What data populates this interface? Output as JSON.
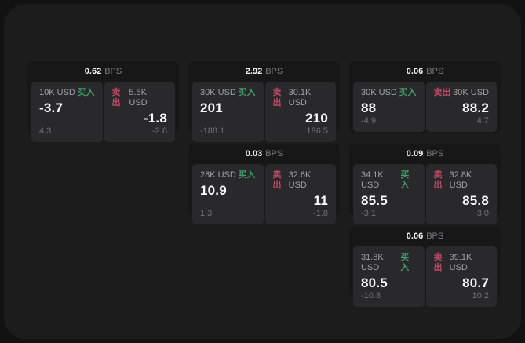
{
  "labels": {
    "bps": "BPS",
    "buy": "买入",
    "sell": "卖出"
  },
  "colors": {
    "page_background": "#1c1c1d",
    "outer_background": "#121213",
    "card_background": "#171718",
    "panel_background": "#29292b",
    "buy_green": "#3c9e6a",
    "sell_red": "#c44866"
  },
  "cards": [
    {
      "bps": "0.62",
      "buy": {
        "amount": "10K USD",
        "value": "-3.7",
        "sub": "4.3"
      },
      "sell": {
        "amount": "5.5K USD",
        "value": "-1.8",
        "sub": "-2.6"
      }
    },
    {
      "bps": "2.92",
      "buy": {
        "amount": "30K USD",
        "value": "201",
        "sub": "-188.1"
      },
      "sell": {
        "amount": "30.1K USD",
        "value": "210",
        "sub": "196.5"
      }
    },
    {
      "bps": "0.06",
      "buy": {
        "amount": "30K USD",
        "value": "88",
        "sub": "-4.9"
      },
      "sell": {
        "amount": "30K USD",
        "value": "88.2",
        "sub": "4.7"
      }
    },
    {
      "bps": "0.03",
      "buy": {
        "amount": "28K USD",
        "value": "10.9",
        "sub": "1.3"
      },
      "sell": {
        "amount": "32.6K USD",
        "value": "11",
        "sub": "-1.8"
      }
    },
    {
      "bps": "0.09",
      "buy": {
        "amount": "34.1K USD",
        "value": "85.5",
        "sub": "-3.1"
      },
      "sell": {
        "amount": "32.8K USD",
        "value": "85.8",
        "sub": "3.0"
      }
    },
    {
      "bps": "0.06",
      "buy": {
        "amount": "31.8K USD",
        "value": "80.5",
        "sub": "-10.8"
      },
      "sell": {
        "amount": "39.1K USD",
        "value": "80.7",
        "sub": "10.2"
      }
    }
  ]
}
